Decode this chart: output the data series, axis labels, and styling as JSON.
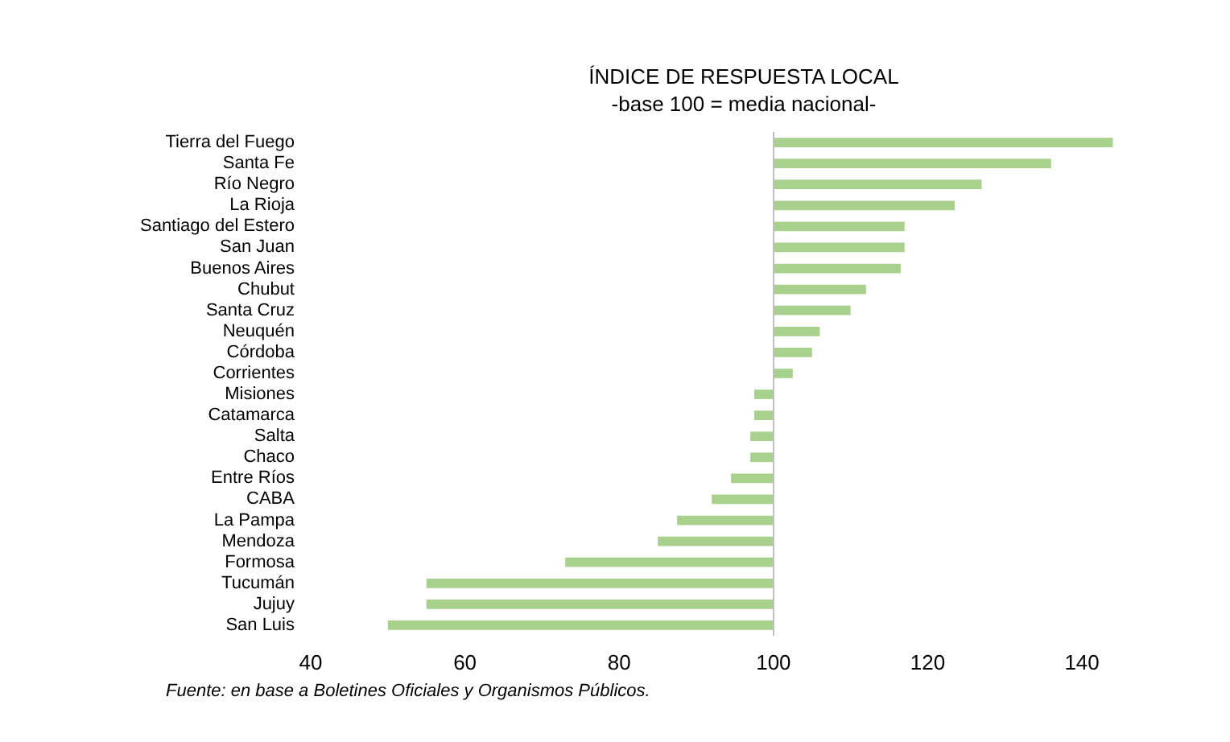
{
  "chart_data": {
    "type": "bar",
    "orientation": "horizontal",
    "title": "ÍNDICE DE RESPUESTA LOCAL",
    "subtitle": "-base 100 = media nacional-",
    "categories": [
      "Tierra del Fuego",
      "Santa Fe",
      "Río Negro",
      "La Rioja",
      "Santiago del Estero",
      "San Juan",
      "Buenos Aires",
      "Chubut",
      "Santa Cruz",
      "Neuquén",
      "Córdoba",
      "Corrientes",
      "Misiones",
      "Catamarca",
      "Salta",
      "Chaco",
      "Entre Ríos",
      "CABA",
      "La Pampa",
      "Mendoza",
      "Formosa",
      "Tucumán",
      "Jujuy",
      "San Luis"
    ],
    "values": [
      44,
      36,
      27,
      23.5,
      17,
      17,
      16.5,
      12,
      10,
      6,
      5,
      2.5,
      -2.5,
      -2.5,
      -3,
      -3,
      -5.5,
      -8,
      -12.5,
      -15,
      -27,
      -45,
      -45,
      -50
    ],
    "base": [
      100,
      100,
      100,
      100,
      100,
      100,
      100,
      100,
      100,
      100,
      100,
      100,
      100,
      100,
      100,
      100,
      100,
      100,
      100,
      100,
      100,
      100,
      100,
      100
    ],
    "color": "#a9d18e",
    "xlim": [
      40,
      145
    ],
    "xticks": [
      40,
      60,
      80,
      100,
      120,
      140
    ],
    "ref_lines": [
      {
        "axis": "x",
        "value": 100,
        "color": "#bfbfbf"
      }
    ],
    "grid": false,
    "annotations": [
      "Fuente: en base a Boletines Oficiales y Organismos Públicos."
    ]
  }
}
